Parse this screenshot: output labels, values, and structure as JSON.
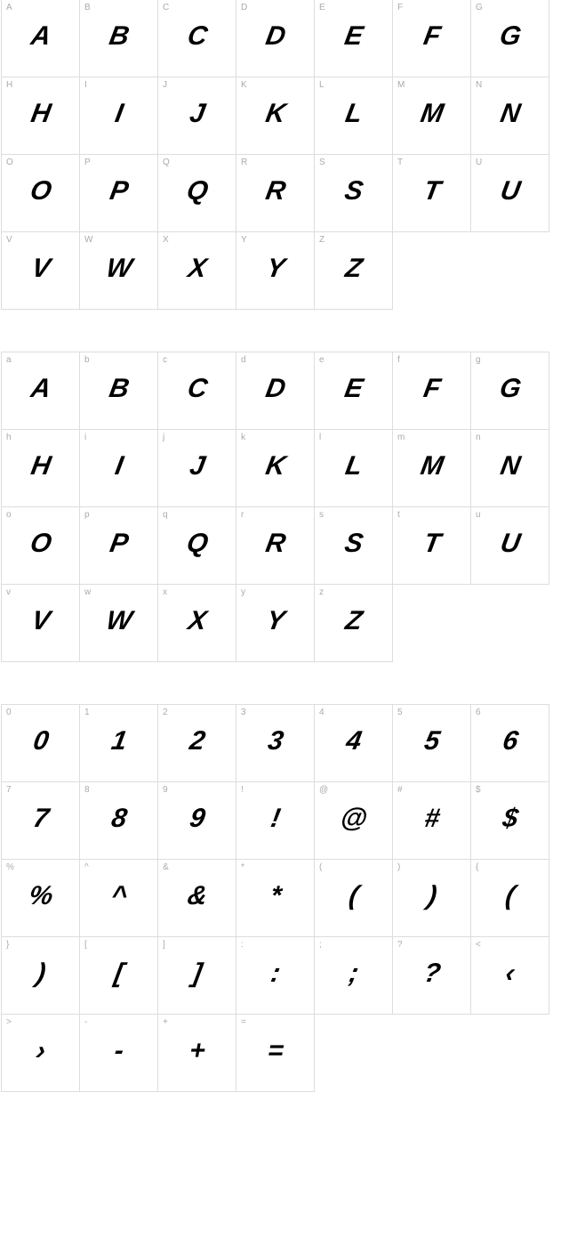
{
  "sections": [
    {
      "cells": [
        {
          "label": "A",
          "glyph": "A"
        },
        {
          "label": "B",
          "glyph": "B"
        },
        {
          "label": "C",
          "glyph": "C"
        },
        {
          "label": "D",
          "glyph": "D"
        },
        {
          "label": "E",
          "glyph": "E"
        },
        {
          "label": "F",
          "glyph": "F"
        },
        {
          "label": "G",
          "glyph": "G"
        },
        {
          "label": "H",
          "glyph": "H"
        },
        {
          "label": "I",
          "glyph": "I"
        },
        {
          "label": "J",
          "glyph": "J"
        },
        {
          "label": "K",
          "glyph": "K"
        },
        {
          "label": "L",
          "glyph": "L"
        },
        {
          "label": "M",
          "glyph": "M"
        },
        {
          "label": "N",
          "glyph": "N"
        },
        {
          "label": "O",
          "glyph": "O"
        },
        {
          "label": "P",
          "glyph": "P"
        },
        {
          "label": "Q",
          "glyph": "Q"
        },
        {
          "label": "R",
          "glyph": "R"
        },
        {
          "label": "S",
          "glyph": "S"
        },
        {
          "label": "T",
          "glyph": "T"
        },
        {
          "label": "U",
          "glyph": "U"
        },
        {
          "label": "V",
          "glyph": "V"
        },
        {
          "label": "W",
          "glyph": "W"
        },
        {
          "label": "X",
          "glyph": "X"
        },
        {
          "label": "Y",
          "glyph": "Y"
        },
        {
          "label": "Z",
          "glyph": "Z"
        }
      ]
    },
    {
      "cells": [
        {
          "label": "a",
          "glyph": "A"
        },
        {
          "label": "b",
          "glyph": "B"
        },
        {
          "label": "c",
          "glyph": "C"
        },
        {
          "label": "d",
          "glyph": "D"
        },
        {
          "label": "e",
          "glyph": "E"
        },
        {
          "label": "f",
          "glyph": "F"
        },
        {
          "label": "g",
          "glyph": "G"
        },
        {
          "label": "h",
          "glyph": "H"
        },
        {
          "label": "i",
          "glyph": "I"
        },
        {
          "label": "j",
          "glyph": "J"
        },
        {
          "label": "k",
          "glyph": "K"
        },
        {
          "label": "l",
          "glyph": "L"
        },
        {
          "label": "m",
          "glyph": "M"
        },
        {
          "label": "n",
          "glyph": "N"
        },
        {
          "label": "o",
          "glyph": "O"
        },
        {
          "label": "p",
          "glyph": "P"
        },
        {
          "label": "q",
          "glyph": "Q"
        },
        {
          "label": "r",
          "glyph": "R"
        },
        {
          "label": "s",
          "glyph": "S"
        },
        {
          "label": "t",
          "glyph": "T"
        },
        {
          "label": "u",
          "glyph": "U"
        },
        {
          "label": "v",
          "glyph": "V"
        },
        {
          "label": "w",
          "glyph": "W"
        },
        {
          "label": "x",
          "glyph": "X"
        },
        {
          "label": "y",
          "glyph": "Y"
        },
        {
          "label": "z",
          "glyph": "Z"
        }
      ]
    },
    {
      "cells": [
        {
          "label": "0",
          "glyph": "0"
        },
        {
          "label": "1",
          "glyph": "1"
        },
        {
          "label": "2",
          "glyph": "2"
        },
        {
          "label": "3",
          "glyph": "3"
        },
        {
          "label": "4",
          "glyph": "4"
        },
        {
          "label": "5",
          "glyph": "5"
        },
        {
          "label": "6",
          "glyph": "6"
        },
        {
          "label": "7",
          "glyph": "7"
        },
        {
          "label": "8",
          "glyph": "8"
        },
        {
          "label": "9",
          "glyph": "9"
        },
        {
          "label": "!",
          "glyph": "!"
        },
        {
          "label": "@",
          "glyph": "@"
        },
        {
          "label": "#",
          "glyph": "#"
        },
        {
          "label": "$",
          "glyph": "$"
        },
        {
          "label": "%",
          "glyph": "%"
        },
        {
          "label": "^",
          "glyph": "^"
        },
        {
          "label": "&",
          "glyph": "&"
        },
        {
          "label": "*",
          "glyph": "*"
        },
        {
          "label": "(",
          "glyph": "("
        },
        {
          "label": ")",
          "glyph": ")"
        },
        {
          "label": "{",
          "glyph": "("
        },
        {
          "label": "}",
          "glyph": ")"
        },
        {
          "label": "[",
          "glyph": "["
        },
        {
          "label": "]",
          "glyph": "]"
        },
        {
          "label": ":",
          "glyph": ":"
        },
        {
          "label": ";",
          "glyph": ";"
        },
        {
          "label": "?",
          "glyph": "?"
        },
        {
          "label": "<",
          "glyph": "‹"
        },
        {
          "label": ">",
          "glyph": "›"
        },
        {
          "label": "-",
          "glyph": "-"
        },
        {
          "label": "+",
          "glyph": "+"
        },
        {
          "label": "=",
          "glyph": "="
        }
      ]
    }
  ],
  "style": {
    "cell_size": 88,
    "columns": 7,
    "border_color": "#dddddd",
    "label_color": "#aaaaaa",
    "label_fontsize": 10,
    "glyph_color": "#000000",
    "glyph_fontsize": 30,
    "glyph_fontweight": 900,
    "glyph_fontstyle": "italic",
    "background_color": "#ffffff",
    "section_gap": 48
  }
}
